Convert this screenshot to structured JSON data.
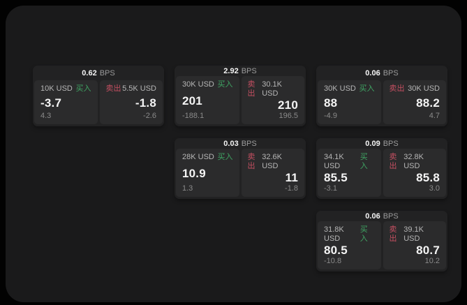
{
  "labels": {
    "bps": "BPS",
    "buy": "买入",
    "sell": "卖出"
  },
  "colors": {
    "buy": "#3fa463",
    "sell": "#c44f61",
    "panel_bg": "#1a1a1b",
    "card_bg": "#222223",
    "tile_bg": "#2b2b2c"
  },
  "cards": [
    {
      "bps": "0.62",
      "buy": {
        "amount": "10K USD",
        "value": "-3.7",
        "secondary": "4.3"
      },
      "sell": {
        "amount": "5.5K USD",
        "value": "-1.8",
        "secondary": "-2.6"
      }
    },
    {
      "bps": "2.92",
      "buy": {
        "amount": "30K USD",
        "value": "201",
        "secondary": "-188.1"
      },
      "sell": {
        "amount": "30.1K USD",
        "value": "210",
        "secondary": "196.5"
      }
    },
    {
      "bps": "0.06",
      "buy": {
        "amount": "30K USD",
        "value": "88",
        "secondary": "-4.9"
      },
      "sell": {
        "amount": "30K USD",
        "value": "88.2",
        "secondary": "4.7"
      }
    },
    {
      "bps": "0.03",
      "buy": {
        "amount": "28K USD",
        "value": "10.9",
        "secondary": "1.3"
      },
      "sell": {
        "amount": "32.6K USD",
        "value": "11",
        "secondary": "-1.8"
      }
    },
    {
      "bps": "0.09",
      "buy": {
        "amount": "34.1K USD",
        "value": "85.5",
        "secondary": "-3.1"
      },
      "sell": {
        "amount": "32.8K USD",
        "value": "85.8",
        "secondary": "3.0"
      }
    },
    {
      "bps": "0.06",
      "buy": {
        "amount": "31.8K USD",
        "value": "80.5",
        "secondary": "-10.8"
      },
      "sell": {
        "amount": "39.1K USD",
        "value": "80.7",
        "secondary": "10.2"
      }
    }
  ]
}
